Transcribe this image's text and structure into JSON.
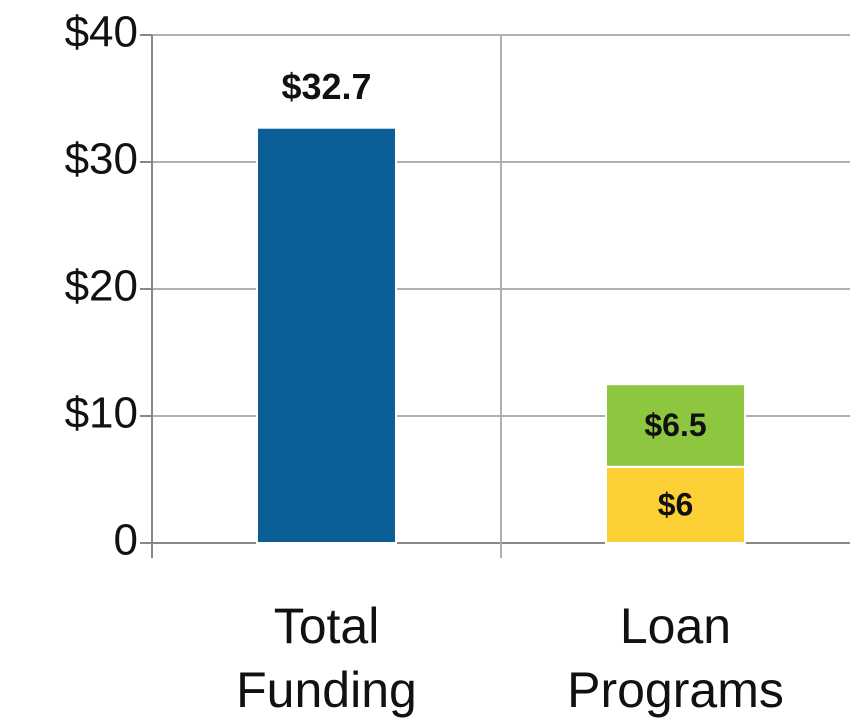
{
  "chart_data": {
    "type": "bar",
    "stacked": true,
    "categories": [
      "Total Funding",
      "Loan Programs"
    ],
    "series": [
      {
        "color": "#0a5f96",
        "values": [
          32.7,
          null
        ],
        "value_labels": [
          "$32.7",
          null
        ]
      },
      {
        "color": "#fdd035",
        "values": [
          null,
          6
        ],
        "value_labels": [
          null,
          "$6"
        ]
      },
      {
        "color": "#8dc63f",
        "values": [
          null,
          6.5
        ],
        "value_labels": [
          null,
          "$6.5"
        ]
      }
    ],
    "ylim": [
      0,
      40
    ],
    "yticks": [
      0,
      {
        "value": 10,
        "label": "$10"
      },
      {
        "value": 20,
        "label": "$20"
      },
      {
        "value": 30,
        "label": "$30"
      },
      {
        "value": 40,
        "label": "$40"
      }
    ],
    "grid": true
  }
}
